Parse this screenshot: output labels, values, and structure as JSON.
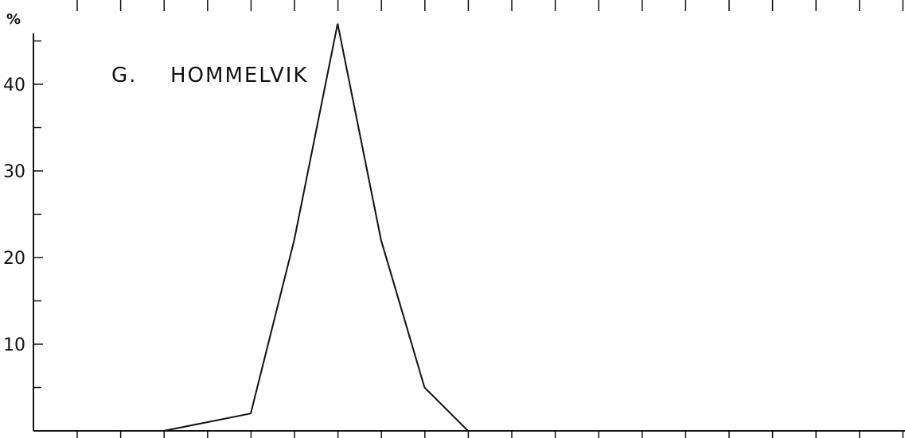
{
  "chart_data": {
    "type": "line",
    "title_prefix": "G.",
    "title": "HOMMELVIK",
    "ylabel": "%",
    "ylim": [
      0,
      50
    ],
    "y_ticks_labeled": [
      10,
      20,
      30,
      40
    ],
    "y_ticks_minor": [
      5,
      15,
      25,
      35,
      45
    ],
    "x_tick_count": 21,
    "x": [
      0,
      1,
      2,
      3,
      4,
      5,
      6,
      7,
      8,
      9,
      10
    ],
    "values": [
      0,
      0,
      0,
      1,
      2,
      22,
      47,
      22,
      5,
      0,
      0
    ],
    "grid": false
  }
}
